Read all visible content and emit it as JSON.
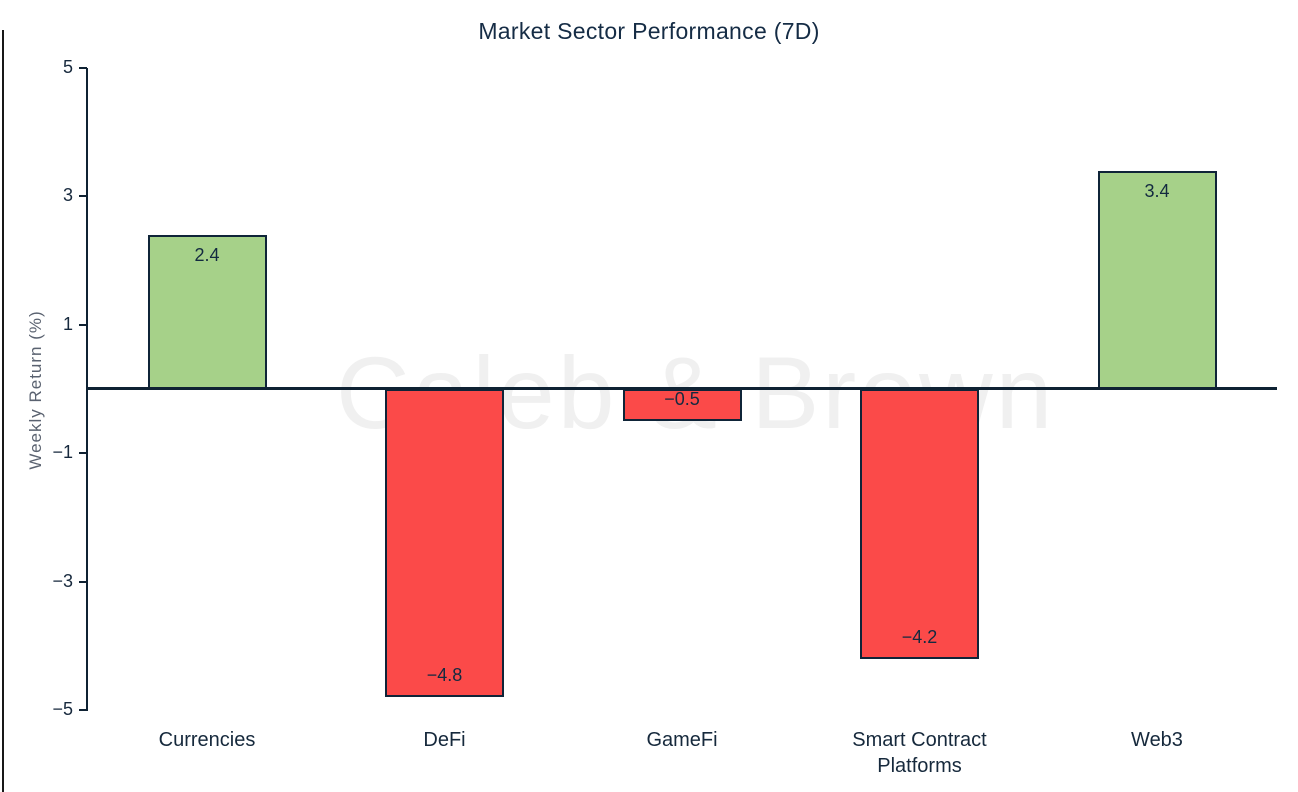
{
  "title": "Market Sector Performance (7D)",
  "watermark": "Caleb & Brown",
  "colors": {
    "positive_bar": "#a6d189",
    "negative_bar": "#fb4a49",
    "bar_border": "#0f2438",
    "axis_line": "#0f2233",
    "tick_text": "#17293d",
    "title_text": "#152c45",
    "ylabel_text": "#5a6270",
    "watermark_text": "#f0f0f0"
  },
  "chart_data": {
    "type": "bar",
    "title": "Market Sector Performance (7D)",
    "xlabel": "",
    "ylabel": "Weekly Return (%)",
    "categories": [
      "Currencies",
      "DeFi",
      "GameFi",
      "Smart Contract Platforms",
      "Web3"
    ],
    "values": [
      2.4,
      -4.8,
      -0.5,
      -4.2,
      3.4
    ],
    "value_labels": [
      "2.4",
      "−4.8",
      "−0.5",
      "−4.2",
      "3.4"
    ],
    "bar_colors": [
      "positive",
      "negative",
      "negative",
      "negative",
      "positive"
    ],
    "ylim": [
      -5,
      5
    ],
    "yticks": [
      5,
      3,
      1,
      -1,
      -3,
      -5
    ],
    "ytick_labels": [
      "5",
      "3",
      "1",
      "−1",
      "−3",
      "−5"
    ],
    "grid": false,
    "legend": null,
    "watermark": "Caleb & Brown"
  }
}
